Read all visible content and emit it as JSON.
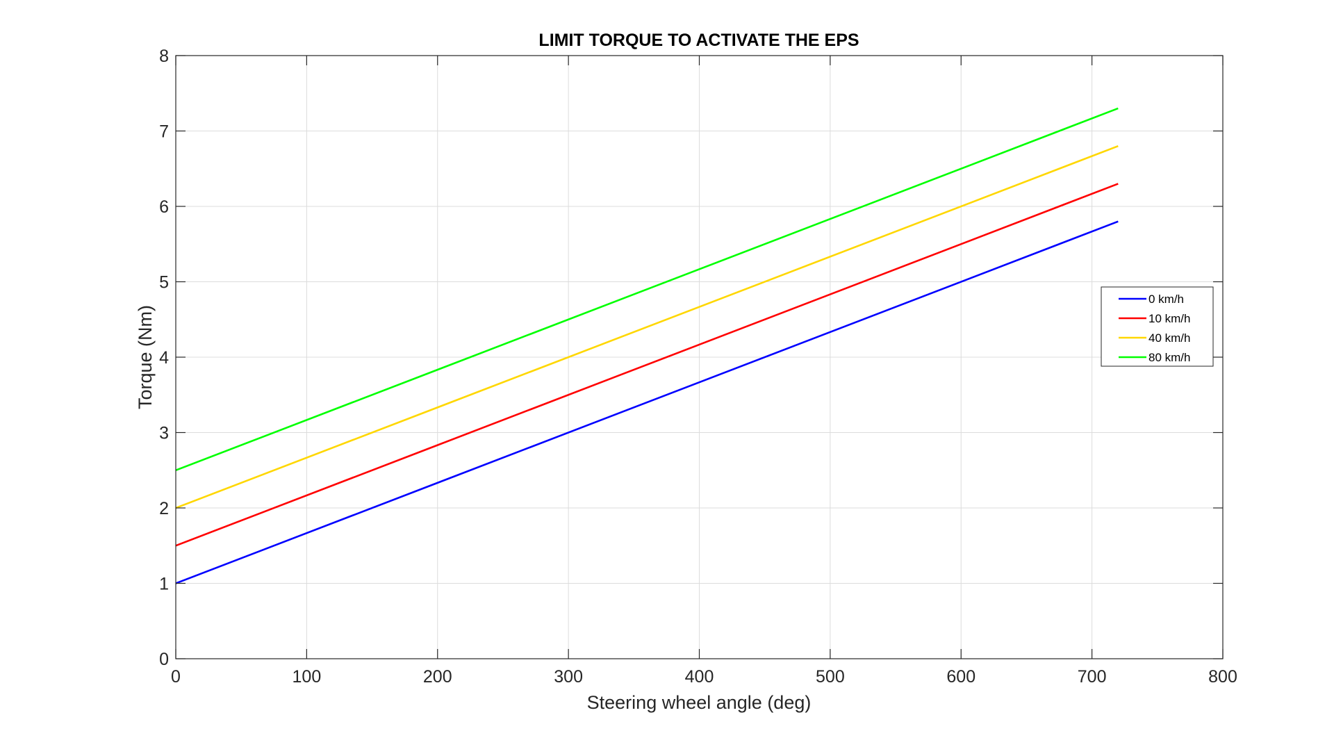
{
  "chart_data": {
    "type": "line",
    "title": "LIMIT TORQUE TO ACTIVATE THE EPS",
    "xlabel": "Steering wheel angle (deg)",
    "ylabel": "Torque (Nm)",
    "xlim": [
      0,
      800
    ],
    "ylim": [
      0,
      8
    ],
    "xticks": [
      0,
      100,
      200,
      300,
      400,
      500,
      600,
      700,
      800
    ],
    "yticks": [
      0,
      1,
      2,
      3,
      4,
      5,
      6,
      7,
      8
    ],
    "grid": true,
    "legend_position": "right",
    "series": [
      {
        "name": "0 km/h",
        "color": "#0000ff",
        "x": [
          0,
          720
        ],
        "y": [
          1.0,
          5.8
        ]
      },
      {
        "name": "10 km/h",
        "color": "#ff0000",
        "x": [
          0,
          720
        ],
        "y": [
          1.5,
          6.3
        ]
      },
      {
        "name": "40 km/h",
        "color": "#ffd700",
        "x": [
          0,
          720
        ],
        "y": [
          2.0,
          6.8
        ]
      },
      {
        "name": "80 km/h",
        "color": "#00ff00",
        "x": [
          0,
          720
        ],
        "y": [
          2.5,
          7.3
        ]
      }
    ]
  }
}
